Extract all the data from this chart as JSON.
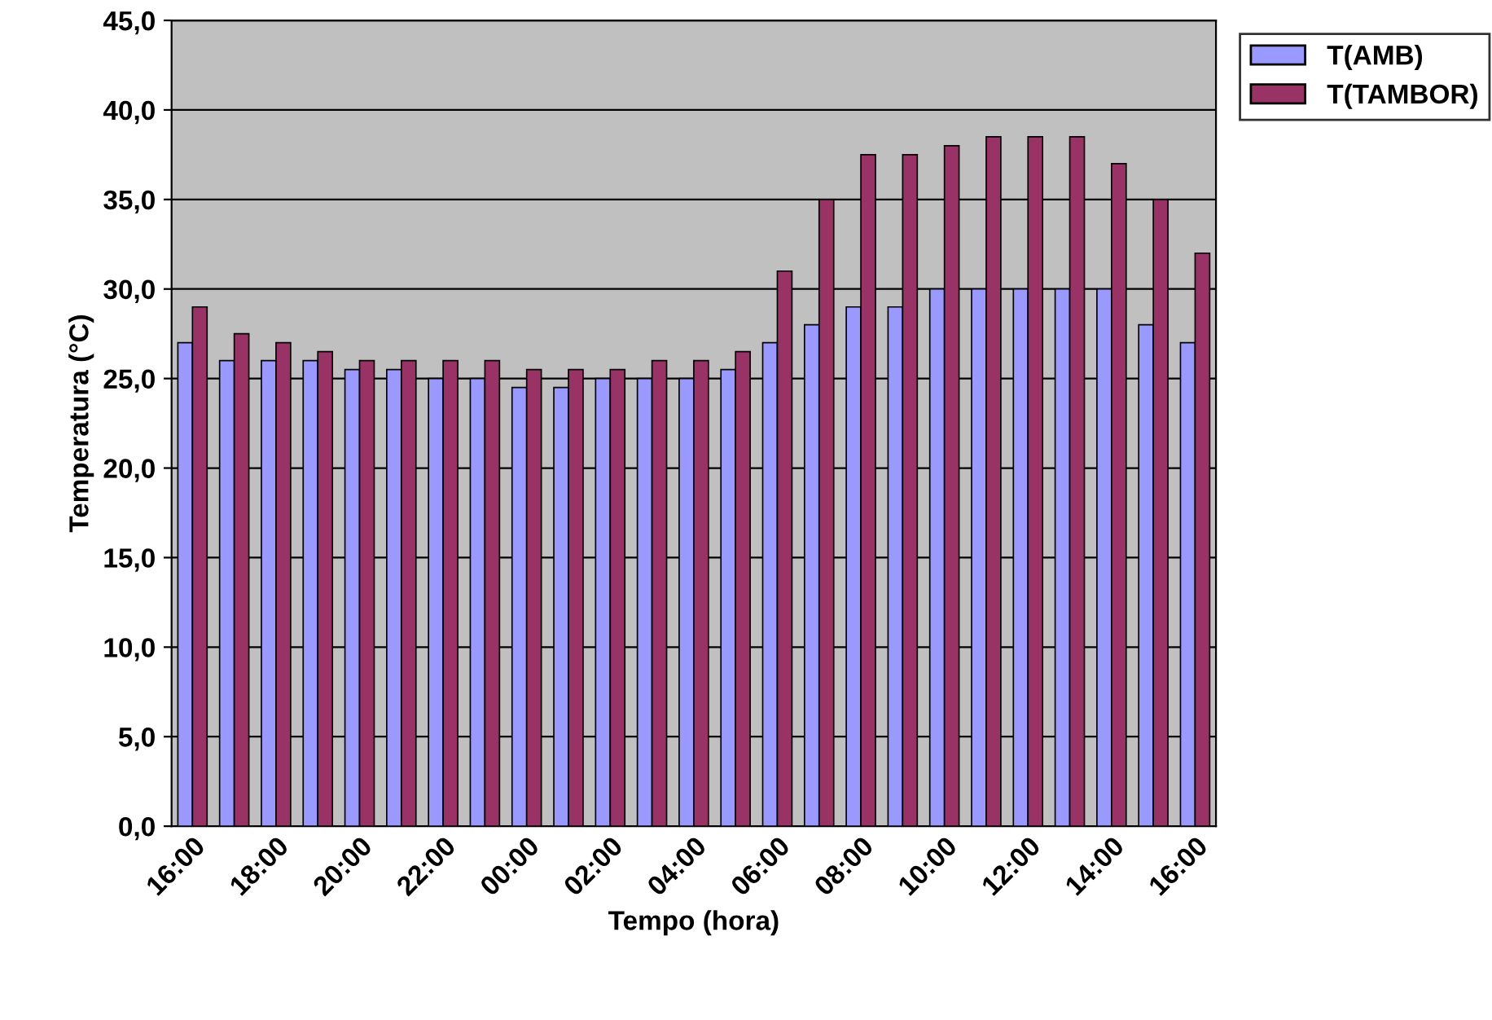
{
  "chart_data": {
    "type": "bar",
    "xlabel": "Tempo (hora)",
    "ylabel": "Temperatura (°C)",
    "categories": [
      "16:00",
      null,
      "18:00",
      null,
      "20:00",
      null,
      "22:00",
      null,
      "00:00",
      null,
      "02:00",
      null,
      "04:00",
      null,
      "06:00",
      null,
      "08:00",
      null,
      "10:00",
      null,
      "12:00",
      null,
      "14:00",
      null,
      "16:00"
    ],
    "series": [
      {
        "name": "T(AMB)",
        "color": "#9999ff",
        "values": [
          27,
          26,
          26,
          26,
          25.5,
          25.5,
          25,
          25,
          24.5,
          24.5,
          25,
          25,
          25,
          25.5,
          27,
          28,
          29,
          29,
          30,
          30,
          30,
          30,
          30,
          28,
          27
        ]
      },
      {
        "name": "T(TAMBOR)",
        "color": "#993366",
        "values": [
          29,
          27.5,
          27,
          26.5,
          26,
          26,
          26,
          26,
          25.5,
          25.5,
          25.5,
          26,
          26,
          26.5,
          31,
          35,
          37.5,
          37.5,
          38,
          38.5,
          38.5,
          38.5,
          37,
          35,
          32
        ]
      }
    ],
    "ylim": [
      0,
      45
    ],
    "yticks": [
      {
        "value": 0,
        "label": "0,0"
      },
      {
        "value": 5,
        "label": "5,0"
      },
      {
        "value": 10,
        "label": "10,0"
      },
      {
        "value": 15,
        "label": "15,0"
      },
      {
        "value": 20,
        "label": "20,0"
      },
      {
        "value": 25,
        "label": "25,0"
      },
      {
        "value": 30,
        "label": "30,0"
      },
      {
        "value": 35,
        "label": "35,0"
      },
      {
        "value": 40,
        "label": "40,0"
      },
      {
        "value": 45,
        "label": "45,0"
      }
    ],
    "grid": "y",
    "legend": "top right"
  }
}
